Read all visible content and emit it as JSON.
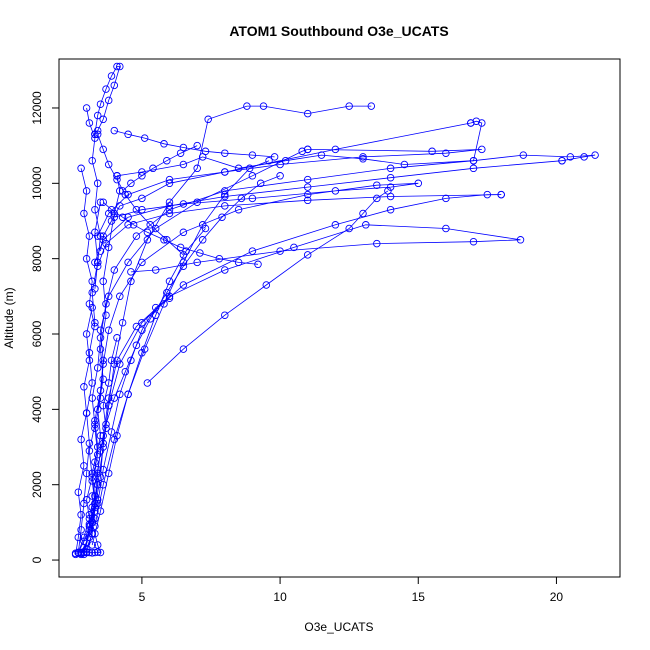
{
  "chart_data": {
    "type": "line",
    "title": "ATOM1 Southbound O3e_UCATS",
    "xlabel": "O3e_UCATS",
    "ylabel": "Altitude (m)",
    "xlim": [
      2.0,
      22.3
    ],
    "ylim": [
      -450,
      13300
    ],
    "x_ticks": [
      5,
      10,
      15,
      20
    ],
    "y_ticks": [
      0,
      2000,
      4000,
      6000,
      8000,
      10000,
      12000
    ],
    "grid": false,
    "marker": "open-circle",
    "color": "#0000ff",
    "series": [
      {
        "x": [
          2.7,
          2.9,
          3.1,
          3.2,
          3.4,
          3.3,
          3.5,
          3.4,
          3.6,
          3.5,
          3.7,
          3.6,
          3.8,
          4.0,
          4.2,
          4.1
        ],
        "y": [
          200,
          500,
          900,
          1400,
          2000,
          2600,
          3300,
          4000,
          4800,
          5600,
          6500,
          7400,
          8300,
          9200,
          9800,
          10200
        ]
      },
      {
        "x": [
          4.1,
          5.0,
          6.5,
          7.2,
          8.5,
          10.2,
          11.5,
          13.0,
          14.5,
          17.0,
          17.3,
          17.1,
          16.9
        ],
        "y": [
          10200,
          10300,
          10500,
          10700,
          10400,
          10600,
          10750,
          10650,
          10500,
          10600,
          11600,
          11650,
          11600
        ]
      },
      {
        "x": [
          16.9,
          12.0,
          8.0,
          6.0,
          5.0,
          4.2,
          3.9,
          3.6,
          3.5
        ],
        "y": [
          11600,
          10900,
          10300,
          10000,
          9600,
          9400,
          9000,
          8600,
          8200
        ]
      },
      {
        "x": [
          2.8,
          3.0,
          3.2,
          3.1,
          3.3,
          3.2,
          3.4,
          3.3,
          3.5,
          3.6,
          3.5,
          3.8,
          4.5,
          5.5,
          7.0,
          9.0,
          10.8,
          11.0
        ],
        "y": [
          150,
          300,
          700,
          1200,
          1700,
          2300,
          3000,
          3700,
          4500,
          5300,
          6100,
          7000,
          7900,
          8800,
          9500,
          10200,
          10850,
          10900
        ]
      },
      {
        "x": [
          11.0,
          15.5,
          17.3,
          16.0,
          13.0,
          10.0,
          8.0,
          6.0,
          4.5,
          3.8,
          3.4
        ],
        "y": [
          10900,
          10850,
          10900,
          10800,
          10700,
          10500,
          10300,
          10100,
          9700,
          9200,
          8600
        ]
      },
      {
        "x": [
          2.7,
          2.9,
          3.1,
          3.0,
          3.2,
          3.1,
          3.3,
          3.2,
          3.4,
          3.5,
          3.7,
          4.0,
          4.8,
          6.0,
          8.0,
          11.0,
          14.0,
          17.0,
          18.8,
          20.5,
          21.4,
          21.0,
          20.2
        ],
        "y": [
          200,
          600,
          1100,
          1600,
          2200,
          2900,
          3600,
          4300,
          5100,
          5900,
          6800,
          7700,
          8600,
          9300,
          9800,
          10100,
          10400,
          10600,
          10750,
          10700,
          10750,
          10700,
          10600
        ]
      },
      {
        "x": [
          20.2,
          17.0,
          14.0,
          11.0,
          8.0,
          6.0,
          4.5,
          3.6,
          3.3
        ],
        "y": [
          10600,
          10400,
          10150,
          9900,
          9650,
          9400,
          9100,
          8500,
          7900
        ]
      },
      {
        "x": [
          2.8,
          3.0,
          3.1,
          3.3,
          3.2,
          3.4,
          3.3,
          3.5,
          3.6,
          3.8,
          4.2,
          5.0,
          6.5,
          8.5,
          11.0,
          13.5,
          15.0,
          14.0,
          12.0,
          9.0,
          6.5,
          5.0,
          4.0
        ],
        "y": [
          180,
          450,
          950,
          1500,
          2100,
          2800,
          3500,
          4300,
          5200,
          6100,
          7000,
          7900,
          8700,
          9300,
          9700,
          9950,
          10000,
          9900,
          9800,
          9600,
          9450,
          9300,
          9100
        ]
      },
      {
        "x": [
          3.0,
          3.2,
          3.3,
          3.5,
          3.6,
          3.8,
          4.2,
          5.0,
          6.5,
          9.0,
          12.0,
          14.0,
          16.0,
          17.5,
          18.0
        ],
        "y": [
          200,
          700,
          1400,
          2200,
          3100,
          4100,
          5200,
          6300,
          7300,
          8200,
          8900,
          9300,
          9600,
          9700,
          9700
        ]
      },
      {
        "x": [
          18.0,
          14.0,
          11.0,
          8.0,
          6.0,
          4.5,
          3.7,
          3.4
        ],
        "y": [
          9700,
          9650,
          9550,
          9400,
          9200,
          8900,
          8400,
          7800
        ]
      },
      {
        "x": [
          2.9,
          3.1,
          3.3,
          3.4,
          3.6,
          3.8,
          4.1,
          4.8,
          6.0,
          8.0,
          10.5,
          13.1,
          16.0,
          18.7,
          17.0,
          13.5,
          10.0,
          7.0,
          5.5,
          4.6
        ],
        "y": [
          220,
          800,
          1500,
          2400,
          3300,
          4300,
          5300,
          6200,
          7000,
          7700,
          8300,
          8900,
          8800,
          8500,
          8450,
          8400,
          8200,
          7900,
          7700,
          7650
        ]
      },
      {
        "x": [
          5.2,
          6.5,
          8.0,
          9.5,
          11.0,
          12.5,
          13.0,
          13.5,
          13.9
        ],
        "y": [
          4700,
          5600,
          6500,
          7300,
          8100,
          8800,
          9200,
          9600,
          9800
        ]
      },
      {
        "x": [
          2.9,
          3.2,
          3.4,
          3.6,
          3.8,
          4.0,
          4.3,
          4.6,
          5.2,
          6.0,
          7.0,
          7.4,
          8.8,
          9.4,
          11.0,
          12.5,
          13.3
        ],
        "y": [
          150,
          1000,
          2000,
          3000,
          4100,
          5200,
          6300,
          7400,
          8500,
          9500,
          10400,
          11700,
          12050,
          12050,
          11850,
          12050,
          12050
        ]
      },
      {
        "x": [
          3.3,
          3.4,
          3.5,
          3.7,
          3.9,
          4.1,
          4.2,
          4.0,
          3.8,
          3.6,
          3.4,
          3.3
        ],
        "y": [
          11300,
          11800,
          12100,
          12500,
          12850,
          13100,
          13100,
          12600,
          12200,
          11700,
          11400,
          11300
        ]
      },
      {
        "x": [
          3.0,
          3.1,
          3.3,
          3.2,
          3.4,
          3.3,
          3.5,
          3.4,
          3.3
        ],
        "y": [
          12000,
          11600,
          11200,
          10600,
          10000,
          9300,
          8600,
          7900,
          7200
        ]
      },
      {
        "x": [
          2.7,
          2.8,
          2.9,
          3.0,
          3.1,
          3.0,
          3.2,
          3.1,
          3.3,
          3.2,
          3.4,
          3.3,
          3.5
        ],
        "y": [
          200,
          800,
          1500,
          2300,
          3100,
          3900,
          4700,
          5500,
          6300,
          7100,
          7900,
          8700,
          9500
        ]
      },
      {
        "x": [
          2.6,
          2.7,
          2.8,
          2.7,
          2.9,
          2.8,
          3.0,
          2.9,
          3.1,
          3.0,
          3.2
        ],
        "y": [
          150,
          600,
          1200,
          1800,
          2500,
          3200,
          3900,
          4600,
          5300,
          6000,
          6700
        ]
      },
      {
        "x": [
          3.4,
          3.6,
          3.9,
          4.2,
          4.6,
          5.0,
          5.5,
          6.0
        ],
        "y": [
          1500,
          2400,
          3400,
          4400,
          5300,
          6100,
          6700,
          6950
        ]
      },
      {
        "x": [
          3.2,
          3.5,
          3.8,
          4.1,
          4.5,
          5.0,
          5.5,
          6.0,
          6.6,
          7.3
        ],
        "y": [
          400,
          1300,
          2300,
          3300,
          4400,
          5500,
          6500,
          7400,
          8200,
          8800
        ]
      },
      {
        "x": [
          3.3,
          3.6,
          4.0,
          4.5,
          5.1,
          5.8,
          6.5,
          7.2,
          8.0,
          8.9,
          9.6
        ],
        "y": [
          900,
          2000,
          3200,
          4400,
          5600,
          6800,
          7900,
          8900,
          9700,
          10400,
          10600
        ]
      },
      {
        "x": [
          2.8,
          3.0,
          2.9,
          3.1,
          3.0,
          3.2,
          3.1,
          3.3
        ],
        "y": [
          10400,
          9800,
          9200,
          8600,
          8000,
          7400,
          6800,
          6200
        ]
      },
      {
        "x": [
          4.0,
          4.5,
          5.1,
          5.8,
          6.5,
          7.3,
          8.0,
          9.0,
          9.8
        ],
        "y": [
          11400,
          11300,
          11200,
          11050,
          10950,
          10850,
          10800,
          10750,
          10700
        ]
      },
      {
        "x": [
          3.4,
          3.6,
          3.8,
          4.1,
          4.4,
          4.8,
          5.3,
          5.9,
          6.5
        ],
        "y": [
          11300,
          10900,
          10500,
          10100,
          9700,
          9300,
          8900,
          8500,
          8100
        ]
      },
      {
        "x": [
          3.6,
          3.9,
          4.3,
          4.7,
          5.2,
          5.8,
          6.4,
          7.1,
          7.8,
          8.5,
          9.2
        ],
        "y": [
          9500,
          9300,
          9100,
          8900,
          8700,
          8500,
          8300,
          8150,
          8000,
          7900,
          7850
        ]
      },
      {
        "x": [
          2.6,
          2.7,
          2.8,
          2.9,
          3.0,
          3.1,
          3.2,
          3.3,
          3.4,
          3.5,
          3.4,
          3.3,
          3.2,
          3.3,
          3.4
        ],
        "y": [
          180,
          190,
          200,
          200,
          210,
          200,
          190,
          200,
          210,
          200,
          400,
          700,
          1000,
          1300,
          1600
        ]
      },
      {
        "x": [
          3.1,
          3.3,
          3.2,
          3.4,
          3.5,
          3.7,
          3.6,
          3.8,
          3.9,
          4.1
        ],
        "y": [
          600,
          1100,
          1700,
          2300,
          2900,
          3500,
          4100,
          4700,
          5300,
          5900
        ]
      },
      {
        "x": [
          4.3,
          4.6,
          5.0,
          5.4,
          5.9,
          6.4,
          7.0
        ],
        "y": [
          9800,
          10000,
          10200,
          10400,
          10600,
          10800,
          11000
        ]
      },
      {
        "x": [
          3.7,
          4.0,
          4.4,
          4.8,
          5.3,
          5.9,
          6.5,
          7.2,
          7.9,
          8.6,
          9.3,
          10.0
        ],
        "y": [
          3600,
          4300,
          5000,
          5700,
          6400,
          7100,
          7800,
          8500,
          9100,
          9600,
          10000,
          10200
        ]
      }
    ]
  }
}
